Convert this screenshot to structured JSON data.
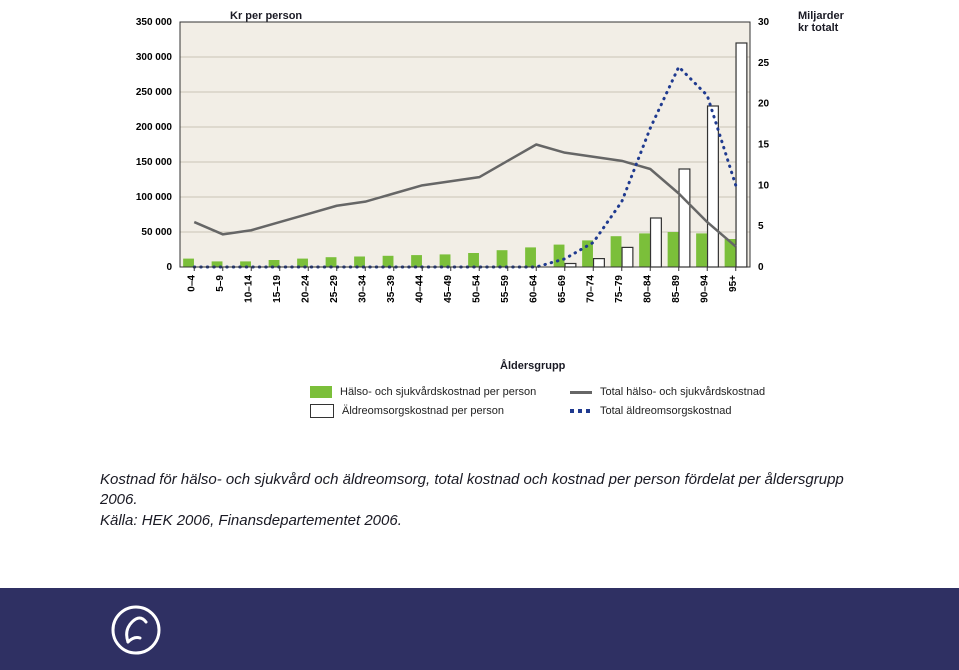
{
  "chart": {
    "type": "combo-bar-line-dual-axis",
    "background_color": "#f2eee6",
    "plot_border_color": "#333333",
    "grid_line_color": "#c9c4b6",
    "left_axis_label": "Kr per person",
    "right_axis_label": "Miljarder kr totalt",
    "x_axis_label": "Åldersgrupp",
    "categories": [
      "0–4",
      "5–9",
      "10–14",
      "15–19",
      "20–24",
      "25–29",
      "30–34",
      "35–39",
      "40–44",
      "45–49",
      "50–54",
      "55–59",
      "60–64",
      "65–69",
      "70–74",
      "75–79",
      "80–84",
      "85–89",
      "90–94",
      "95+"
    ],
    "left_y": {
      "min": 0,
      "max": 350000,
      "tick_step": 50000,
      "label_fontsize": 10,
      "label_weight": "bold"
    },
    "right_y": {
      "min": 0,
      "max": 30,
      "ticks": [
        0,
        5,
        10,
        15,
        20,
        25,
        30
      ],
      "label_fontsize": 10,
      "label_weight": "bold"
    },
    "series": {
      "health_cost_per_person_bars": {
        "type": "bar",
        "axis": "left",
        "color": "#7bbf3a",
        "bar_width": 0.38,
        "offset": -0.2,
        "values": [
          12000,
          8000,
          8000,
          10000,
          12000,
          14000,
          15000,
          16000,
          17000,
          18000,
          20000,
          24000,
          28000,
          32000,
          38000,
          44000,
          48000,
          50000,
          48000,
          40000
        ]
      },
      "eldercare_cost_per_person_bars": {
        "type": "bar",
        "axis": "left",
        "fill": "#ffffff",
        "stroke": "#333333",
        "bar_width": 0.38,
        "offset": 0.2,
        "values": [
          0,
          0,
          0,
          0,
          0,
          0,
          0,
          0,
          0,
          0,
          0,
          0,
          0,
          5000,
          12000,
          28000,
          70000,
          140000,
          230000,
          320000
        ]
      },
      "total_health_cost_line": {
        "type": "line",
        "axis": "right",
        "color": "#666666",
        "line_width": 2.5,
        "dash": "solid",
        "values": [
          5.5,
          4.0,
          4.5,
          5.5,
          6.5,
          7.5,
          8.0,
          9.0,
          10.0,
          10.5,
          11.0,
          13.0,
          15.0,
          14.0,
          13.5,
          13.0,
          12.0,
          9.0,
          5.5,
          2.5
        ]
      },
      "total_eldercare_cost_line": {
        "type": "line",
        "axis": "right",
        "color": "#1f3a8f",
        "line_width": 3,
        "dash": "dotted",
        "dot_size": 3,
        "values": [
          0,
          0,
          0,
          0,
          0,
          0,
          0,
          0,
          0,
          0,
          0,
          0,
          0,
          1.0,
          3.0,
          8.0,
          17.0,
          24.5,
          21.0,
          10.0
        ]
      }
    },
    "legend": {
      "items": [
        {
          "key": "health_cost_per_person_bars",
          "label": "Hälso- och sjukvårdskostnad per person"
        },
        {
          "key": "total_health_cost_line",
          "label": "Total hälso- och sjukvårdskostnad"
        },
        {
          "key": "eldercare_cost_per_person_bars",
          "label": "Äldreomsorgskostnad per person"
        },
        {
          "key": "total_eldercare_cost_line",
          "label": "Total äldreomsorgskostnad"
        }
      ],
      "fontsize": 11
    },
    "title_fontsize": 11,
    "x_tick_rotation": -90,
    "x_tick_fontsize": 10
  },
  "caption": {
    "line1": "Kostnad för hälso- och sjukvård och äldreomsorg, total kostnad och kostnad per person fördelat per åldersgrupp 2006.",
    "line2": "Källa: HEK 2006, Finansdepartementet 2006."
  },
  "footer": {
    "background_color": "#2f3063",
    "logo_stroke": "#ffffff"
  }
}
